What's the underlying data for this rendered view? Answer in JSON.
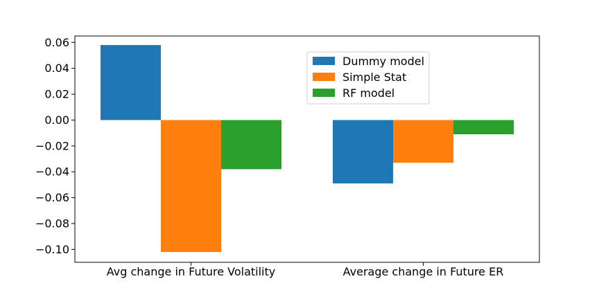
{
  "chart_data": {
    "type": "bar",
    "categories": [
      "Avg change in Future Volatility",
      "Average change in Future ER"
    ],
    "series": [
      {
        "name": "Dummy model",
        "values": [
          0.058,
          -0.049
        ],
        "color": "#1f77b4"
      },
      {
        "name": "Simple Stat",
        "values": [
          -0.102,
          -0.033
        ],
        "color": "#ff7f0e"
      },
      {
        "name": "RF model",
        "values": [
          -0.038,
          -0.011
        ],
        "color": "#2ca02c"
      }
    ],
    "yticks": [
      0.06,
      0.04,
      0.02,
      0.0,
      -0.02,
      -0.04,
      -0.06,
      -0.08,
      -0.1
    ],
    "ytick_labels": [
      "0.06",
      "0.04",
      "0.02",
      "0.00",
      "−0.02",
      "−0.04",
      "−0.06",
      "−0.08",
      "−0.10"
    ],
    "ylim": [
      -0.11,
      0.065
    ],
    "title": "",
    "xlabel": "",
    "ylabel": "",
    "grid": false,
    "legend_position": "top-right"
  }
}
